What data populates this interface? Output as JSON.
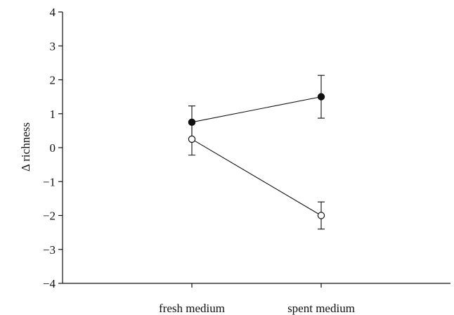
{
  "chart_data": {
    "type": "line",
    "title": "",
    "xlabel": "",
    "ylabel": "Δ richness",
    "ylim": [
      -4,
      4
    ],
    "yticks": [
      "4",
      "3",
      "2",
      "1",
      "0",
      "−1",
      "−2",
      "−3",
      "−4"
    ],
    "categories": [
      "fresh medium",
      "spent medium"
    ],
    "grid": false,
    "series": [
      {
        "marker": "filled-circle",
        "color": "#111111",
        "values": [
          0.75,
          1.5
        ],
        "err": [
          0.48,
          0.63
        ]
      },
      {
        "marker": "open-circle",
        "color": "#111111",
        "values": [
          0.25,
          -2.0
        ],
        "err": [
          0.47,
          0.4
        ]
      }
    ]
  }
}
